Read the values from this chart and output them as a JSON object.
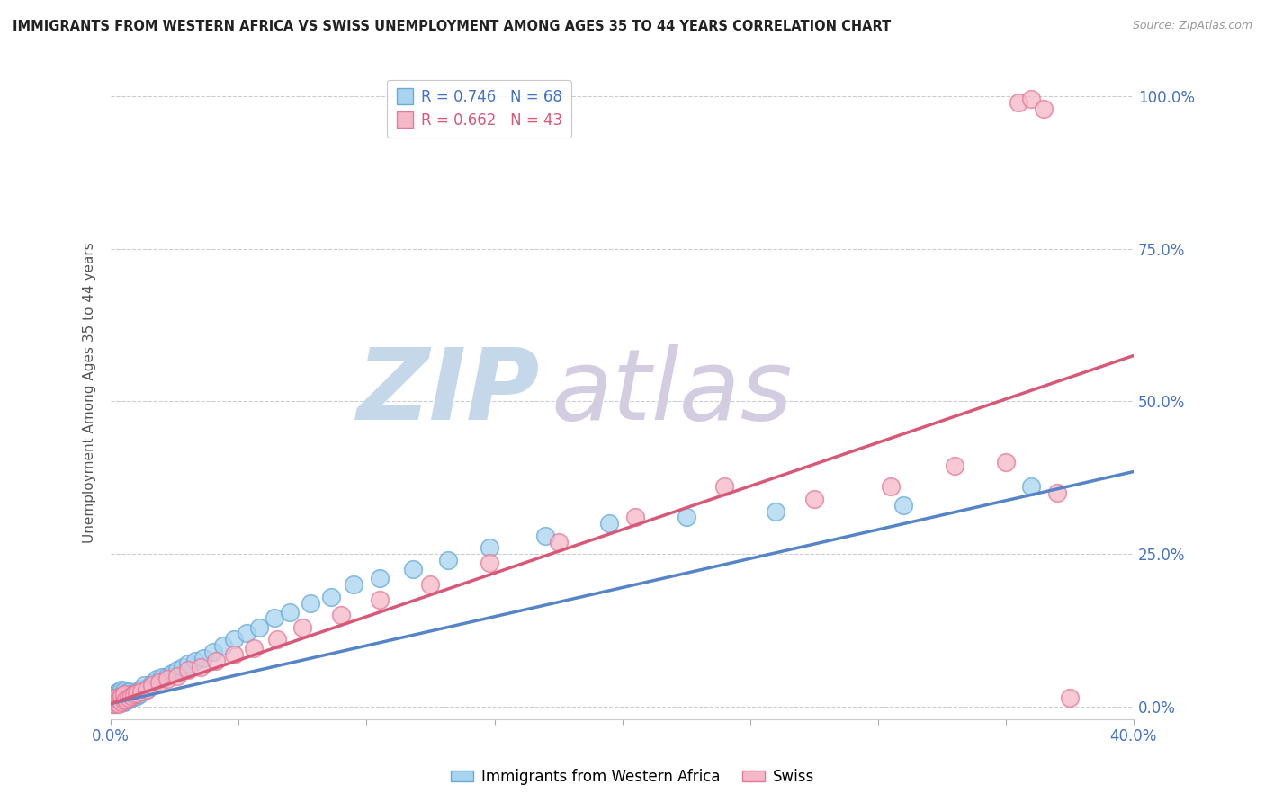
{
  "title": "IMMIGRANTS FROM WESTERN AFRICA VS SWISS UNEMPLOYMENT AMONG AGES 35 TO 44 YEARS CORRELATION CHART",
  "source": "Source: ZipAtlas.com",
  "ylabel": "Unemployment Among Ages 35 to 44 years",
  "ytick_labels": [
    "100.0%",
    "75.0%",
    "50.0%",
    "25.0%",
    "0.0%"
  ],
  "ytick_values": [
    1.0,
    0.75,
    0.5,
    0.25,
    0.0
  ],
  "xmin": 0.0,
  "xmax": 0.4,
  "ymin": -0.02,
  "ymax": 1.05,
  "legend_r1": "R = 0.746",
  "legend_n1": "N = 68",
  "legend_r2": "R = 0.662",
  "legend_n2": "N = 43",
  "color_blue": "#a8d4f0",
  "color_pink": "#f5b8c8",
  "color_blue_edge": "#6aaad8",
  "color_pink_edge": "#e87898",
  "color_blue_line": "#5585c8",
  "color_pink_line": "#d85878",
  "watermark_zip_color": "#c8d8e8",
  "watermark_atlas_color": "#d0c8e0",
  "blue_scatter_x": [
    0.001,
    0.001,
    0.001,
    0.002,
    0.002,
    0.002,
    0.002,
    0.003,
    0.003,
    0.003,
    0.003,
    0.003,
    0.004,
    0.004,
    0.004,
    0.004,
    0.005,
    0.005,
    0.005,
    0.005,
    0.006,
    0.006,
    0.006,
    0.007,
    0.007,
    0.007,
    0.008,
    0.008,
    0.009,
    0.009,
    0.01,
    0.01,
    0.011,
    0.012,
    0.013,
    0.014,
    0.015,
    0.016,
    0.017,
    0.018,
    0.02,
    0.022,
    0.024,
    0.026,
    0.028,
    0.03,
    0.033,
    0.036,
    0.04,
    0.044,
    0.048,
    0.053,
    0.058,
    0.064,
    0.07,
    0.078,
    0.086,
    0.095,
    0.105,
    0.118,
    0.132,
    0.148,
    0.17,
    0.195,
    0.225,
    0.26,
    0.31,
    0.36
  ],
  "blue_scatter_y": [
    0.005,
    0.012,
    0.018,
    0.004,
    0.01,
    0.016,
    0.022,
    0.006,
    0.012,
    0.018,
    0.025,
    0.008,
    0.01,
    0.016,
    0.022,
    0.028,
    0.008,
    0.014,
    0.02,
    0.026,
    0.01,
    0.016,
    0.022,
    0.012,
    0.018,
    0.025,
    0.014,
    0.02,
    0.016,
    0.022,
    0.018,
    0.025,
    0.02,
    0.03,
    0.035,
    0.028,
    0.032,
    0.038,
    0.04,
    0.045,
    0.048,
    0.05,
    0.055,
    0.06,
    0.065,
    0.07,
    0.075,
    0.08,
    0.09,
    0.1,
    0.11,
    0.12,
    0.13,
    0.145,
    0.155,
    0.17,
    0.18,
    0.2,
    0.21,
    0.225,
    0.24,
    0.26,
    0.28,
    0.3,
    0.31,
    0.32,
    0.33,
    0.36
  ],
  "pink_scatter_x": [
    0.001,
    0.002,
    0.002,
    0.003,
    0.003,
    0.004,
    0.004,
    0.005,
    0.005,
    0.006,
    0.007,
    0.008,
    0.009,
    0.01,
    0.012,
    0.014,
    0.016,
    0.019,
    0.022,
    0.026,
    0.03,
    0.035,
    0.041,
    0.048,
    0.056,
    0.065,
    0.075,
    0.09,
    0.105,
    0.125,
    0.148,
    0.175,
    0.205,
    0.24,
    0.275,
    0.305,
    0.33,
    0.35,
    0.355,
    0.36,
    0.365,
    0.37,
    0.375
  ],
  "pink_scatter_y": [
    0.005,
    0.008,
    0.015,
    0.005,
    0.012,
    0.008,
    0.018,
    0.01,
    0.02,
    0.012,
    0.015,
    0.018,
    0.02,
    0.022,
    0.025,
    0.028,
    0.035,
    0.04,
    0.045,
    0.05,
    0.06,
    0.065,
    0.075,
    0.085,
    0.095,
    0.11,
    0.13,
    0.15,
    0.175,
    0.2,
    0.235,
    0.27,
    0.31,
    0.36,
    0.34,
    0.36,
    0.395,
    0.4,
    0.99,
    0.995,
    0.98,
    0.35,
    0.015
  ],
  "blue_trend_x": [
    0.0,
    0.4
  ],
  "blue_trend_y": [
    0.005,
    0.385
  ],
  "pink_trend_x": [
    0.0,
    0.4
  ],
  "pink_trend_y": [
    0.005,
    0.575
  ]
}
